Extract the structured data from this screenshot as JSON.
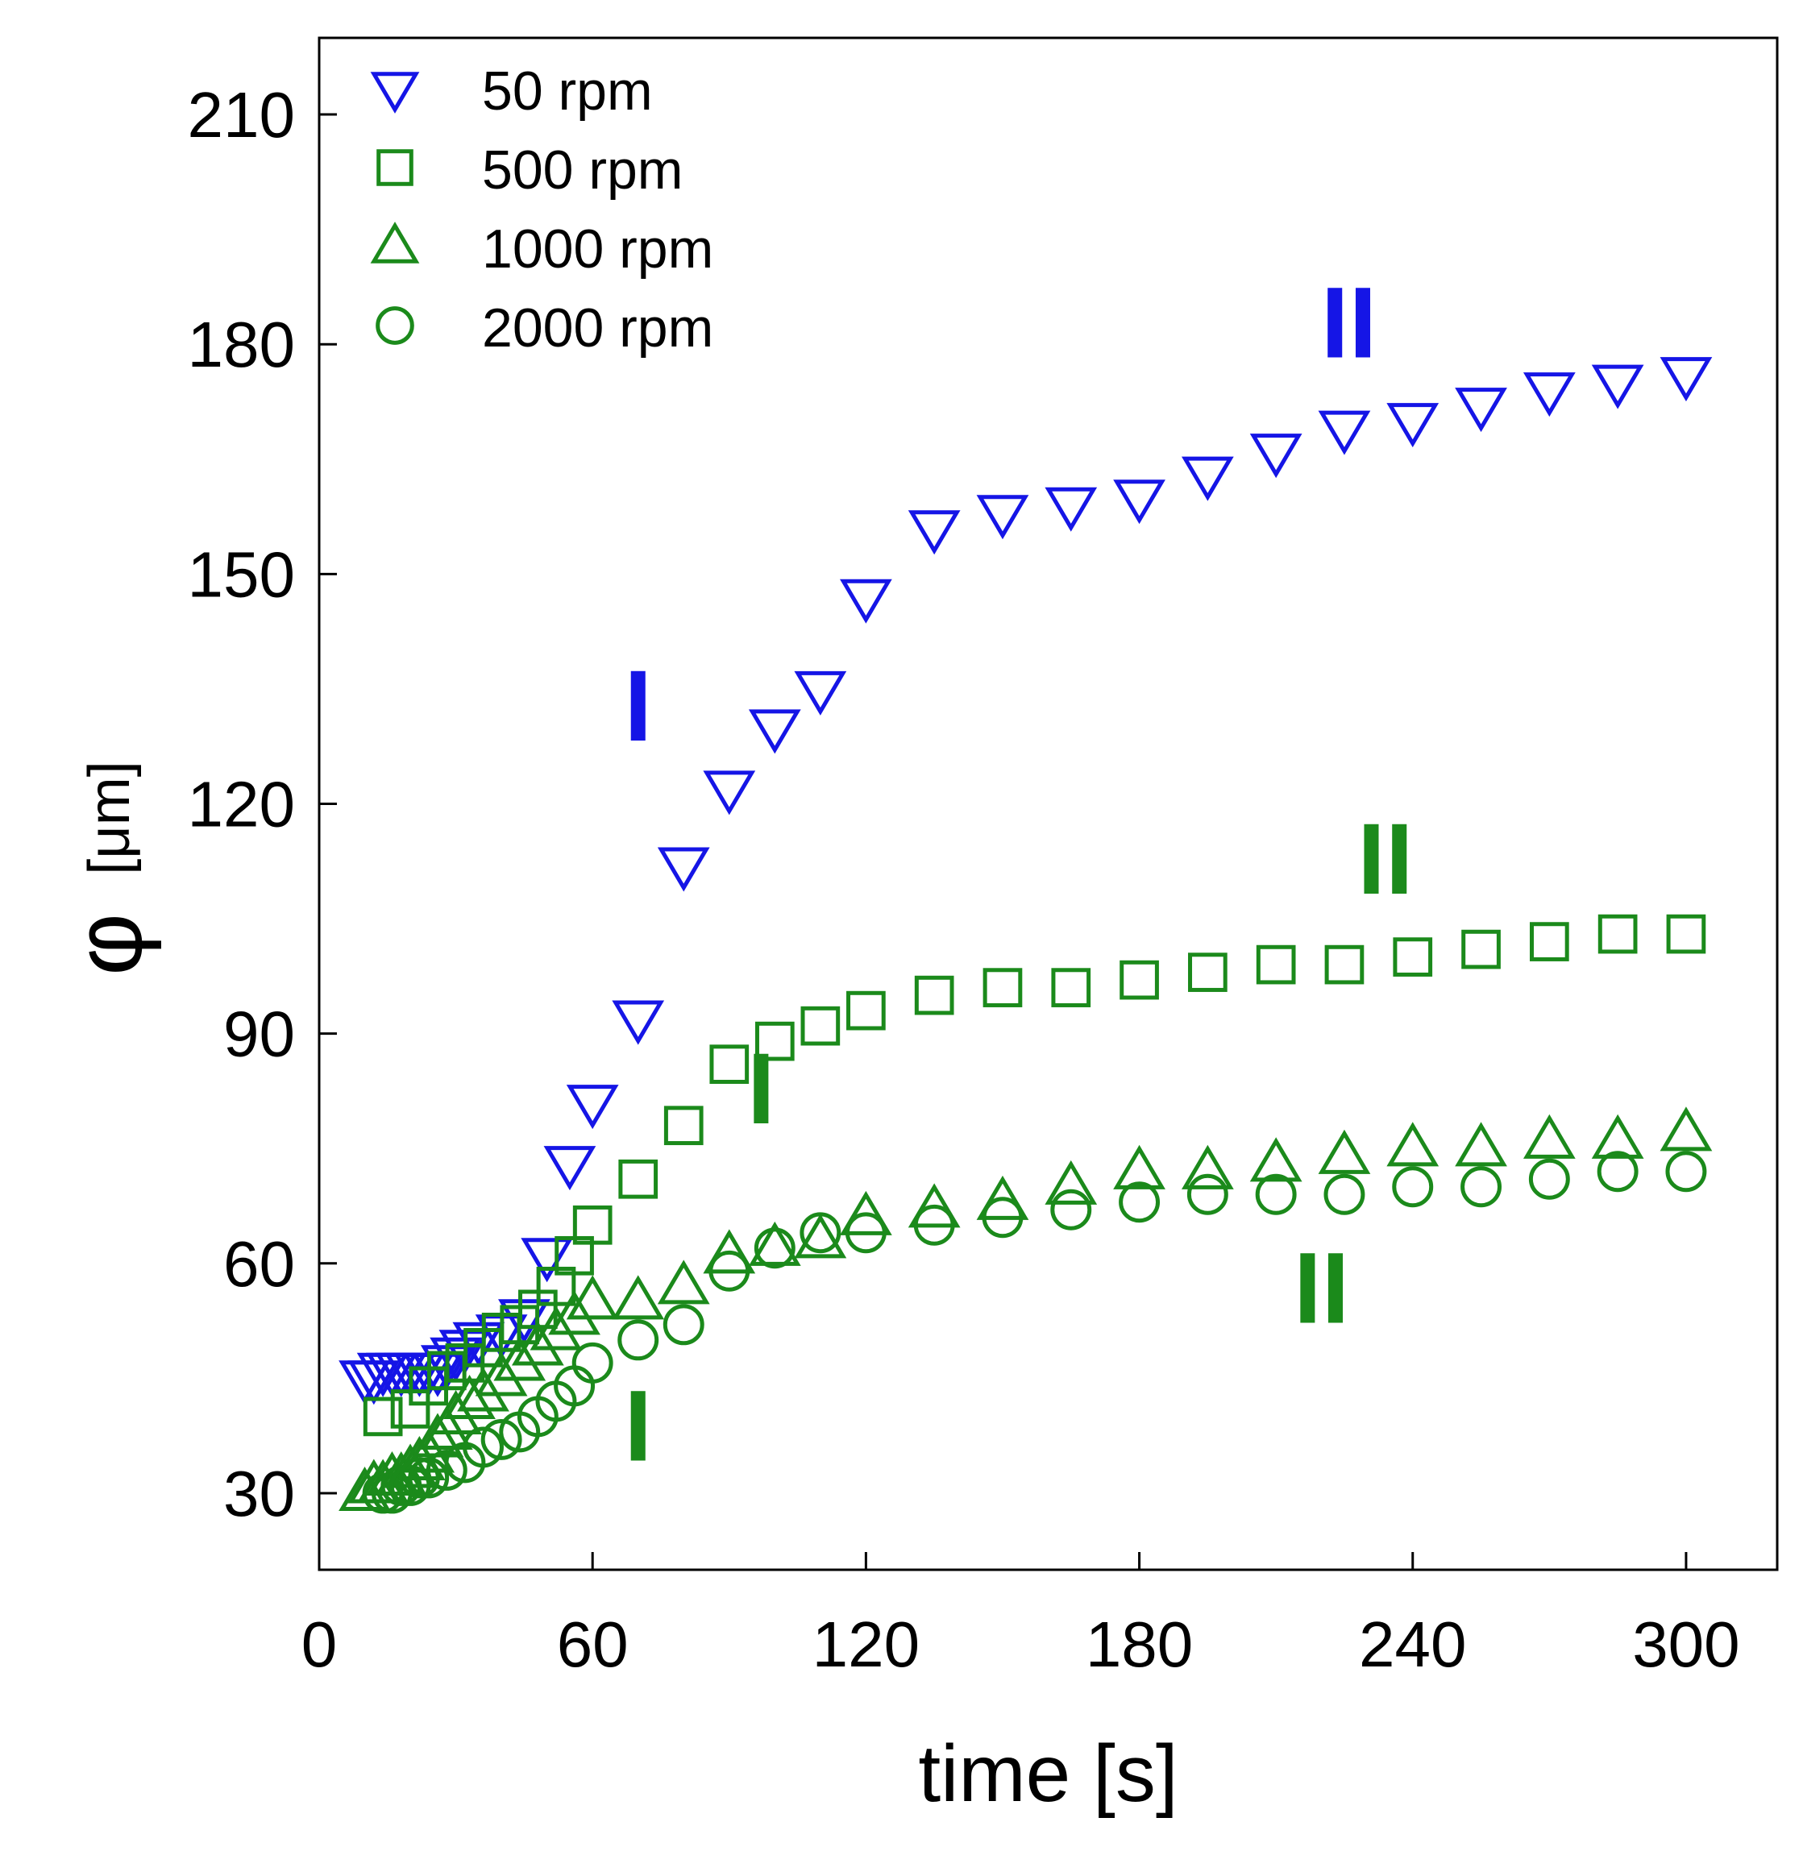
{
  "chart_data": {
    "type": "scatter",
    "title": "",
    "xlabel": "time [s]",
    "ylabel_symbol": "φ",
    "ylabel_unit": "[μm]",
    "xlim": [
      0,
      320
    ],
    "ylim": [
      20,
      220
    ],
    "xticks": [
      0,
      60,
      120,
      180,
      240,
      300
    ],
    "yticks": [
      30,
      60,
      90,
      120,
      150,
      180,
      210
    ],
    "grid": false,
    "legend_position": "top-left",
    "colors": {
      "blue": "#1515e6",
      "green": "#1b8a1b"
    },
    "series": [
      {
        "name": "50 rpm",
        "marker": "triangle-down",
        "color": "#1515e6",
        "x": [
          10,
          12,
          14,
          16,
          18,
          20,
          22,
          24,
          26,
          28,
          30,
          32,
          35,
          40,
          45,
          50,
          55,
          60,
          70,
          80,
          90,
          100,
          110,
          120,
          135,
          150,
          165,
          180,
          195,
          210,
          225,
          240,
          255,
          270,
          285,
          300
        ],
        "y": [
          45,
          45,
          46,
          46,
          46,
          46,
          46,
          46,
          46,
          47,
          48,
          49,
          50,
          51,
          53,
          61,
          73,
          81,
          92,
          112,
          122,
          130,
          135,
          147,
          156,
          158,
          159,
          160,
          163,
          166,
          169,
          170,
          172,
          174,
          175,
          176
        ]
      },
      {
        "name": "500 rpm",
        "marker": "square",
        "color": "#1b8a1b",
        "x": [
          14,
          20,
          24,
          28,
          32,
          36,
          40,
          44,
          48,
          52,
          56,
          60,
          70,
          80,
          90,
          100,
          110,
          120,
          135,
          150,
          165,
          180,
          195,
          210,
          225,
          240,
          255,
          270,
          285,
          300
        ],
        "y": [
          40,
          41,
          44,
          46,
          47,
          49,
          51,
          52,
          54,
          57,
          61,
          65,
          71,
          78,
          86,
          89,
          91,
          93,
          95,
          96,
          96,
          97,
          98,
          99,
          99,
          100,
          101,
          102,
          103,
          103
        ]
      },
      {
        "name": "1000 rpm",
        "marker": "triangle-up",
        "color": "#1b8a1b",
        "x": [
          10,
          12,
          14,
          16,
          18,
          20,
          22,
          24,
          26,
          28,
          30,
          33,
          36,
          40,
          44,
          48,
          52,
          56,
          60,
          70,
          80,
          90,
          100,
          110,
          120,
          135,
          150,
          165,
          180,
          195,
          210,
          225,
          240,
          255,
          270,
          285,
          300
        ],
        "y": [
          30,
          31,
          31,
          32,
          32,
          33,
          34,
          35,
          37,
          38,
          40,
          42,
          43,
          45,
          47,
          49,
          51,
          53,
          55,
          55,
          57,
          61,
          62,
          63,
          66,
          67,
          68,
          70,
          72,
          72,
          73,
          74,
          75,
          75,
          76,
          76,
          77
        ]
      },
      {
        "name": "2000 rpm",
        "marker": "circle",
        "color": "#1b8a1b",
        "x": [
          14,
          16,
          18,
          20,
          22,
          24,
          28,
          32,
          36,
          40,
          44,
          48,
          52,
          56,
          60,
          70,
          80,
          90,
          100,
          110,
          120,
          135,
          150,
          165,
          180,
          195,
          210,
          225,
          240,
          255,
          270,
          285,
          300
        ],
        "y": [
          30,
          30,
          31,
          31,
          32,
          32,
          33,
          34,
          36,
          37,
          38,
          40,
          42,
          44,
          47,
          50,
          52,
          59,
          62,
          64,
          64,
          65,
          66,
          67,
          68,
          69,
          69,
          69,
          70,
          70,
          71,
          72,
          72
        ]
      }
    ],
    "annotations": [
      {
        "text": "I",
        "color": "#1515e6",
        "x": 70,
        "y": 133
      },
      {
        "text": "II",
        "color": "#1515e6",
        "x": 226,
        "y": 183
      },
      {
        "text": "I",
        "color": "#1b8a1b",
        "x": 97,
        "y": 83
      },
      {
        "text": "II",
        "color": "#1b8a1b",
        "x": 234,
        "y": 113
      },
      {
        "text": "I",
        "color": "#1b8a1b",
        "x": 70,
        "y": 39
      },
      {
        "text": "II",
        "color": "#1b8a1b",
        "x": 220,
        "y": 57
      }
    ]
  }
}
